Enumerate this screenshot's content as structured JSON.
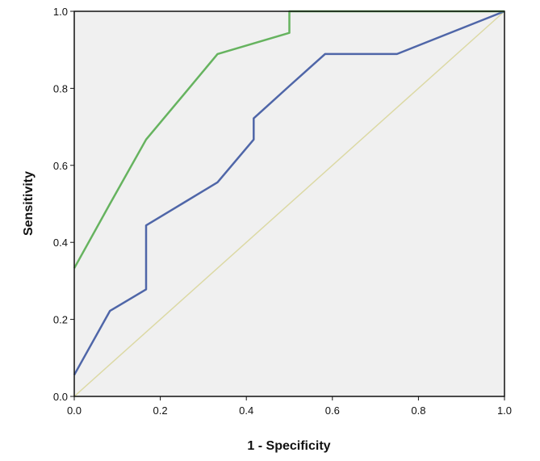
{
  "chart_data": {
    "type": "line",
    "title": "",
    "xlabel": "1 - Specificity",
    "ylabel": "Sensitivity",
    "xlim": [
      0,
      1
    ],
    "ylim": [
      0,
      1
    ],
    "x_ticks": [
      "0.0",
      "0.2",
      "0.4",
      "0.6",
      "0.8",
      "1.0"
    ],
    "y_ticks": [
      "0.0",
      "0.2",
      "0.4",
      "0.6",
      "0.8",
      "1.0"
    ],
    "grid": false,
    "legend": "none",
    "series": [
      {
        "color": "#66b35f",
        "points": [
          [
            0,
            0.333
          ],
          [
            0.083,
            0.5
          ],
          [
            0.167,
            0.667
          ],
          [
            0.25,
            0.778
          ],
          [
            0.333,
            0.889
          ],
          [
            0.5,
            0.944
          ],
          [
            0.5,
            1.0
          ],
          [
            1.0,
            1.0
          ]
        ]
      },
      {
        "color": "#4f66a8",
        "points": [
          [
            0,
            0.056
          ],
          [
            0.083,
            0.222
          ],
          [
            0.167,
            0.278
          ],
          [
            0.167,
            0.444
          ],
          [
            0.25,
            0.5
          ],
          [
            0.333,
            0.556
          ],
          [
            0.417,
            0.667
          ],
          [
            0.417,
            0.722
          ],
          [
            0.5,
            0.806
          ],
          [
            0.583,
            0.889
          ],
          [
            0.667,
            0.889
          ],
          [
            0.75,
            0.889
          ],
          [
            1.0,
            1.0
          ]
        ]
      },
      {
        "color": "#dcd9a4",
        "points": [
          [
            0,
            0
          ],
          [
            1.0,
            1.0
          ]
        ]
      }
    ]
  }
}
